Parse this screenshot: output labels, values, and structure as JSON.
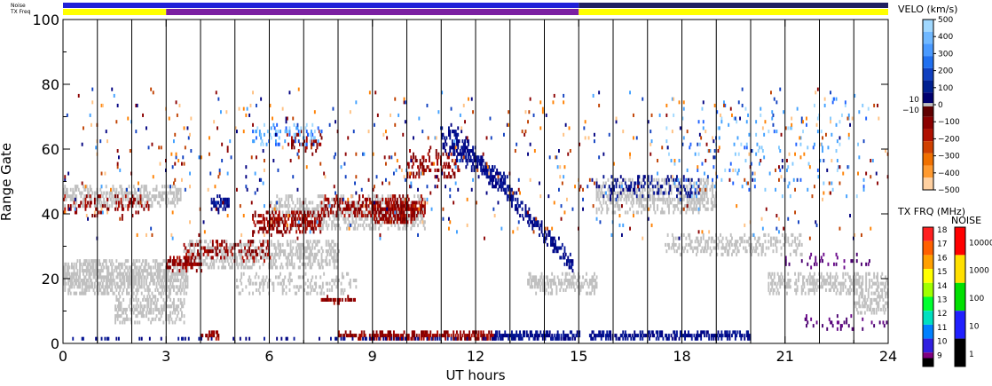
{
  "chart_data": {
    "type": "heatmap",
    "title": "",
    "xlabel": "UT hours",
    "ylabel": "Range Gate",
    "xlim": [
      0,
      24
    ],
    "ylim": [
      0,
      100
    ],
    "x_ticks": [
      0,
      3,
      6,
      9,
      12,
      15,
      18,
      21,
      24
    ],
    "x_tick_labels": [
      "0",
      "3",
      "6",
      "9",
      "12",
      "15",
      "18",
      "21",
      "24"
    ],
    "y_ticks": [
      0,
      20,
      40,
      60,
      80,
      100
    ],
    "y_tick_labels": [
      "0",
      "20",
      "40",
      "60",
      "80",
      "100"
    ],
    "scan_boundaries_ut": [
      1,
      2,
      3,
      4,
      5,
      6,
      7,
      8,
      9,
      10,
      11,
      12,
      13,
      14,
      15,
      16,
      17,
      18,
      19,
      20,
      21,
      22,
      23
    ],
    "top_strips": {
      "noise_label": "Noise",
      "txfreq_label": "TX Freq",
      "txfreq_segments": [
        {
          "start": 0,
          "end": 3,
          "color": "#ffff00"
        },
        {
          "start": 3,
          "end": 15,
          "color": "#7b1fa2"
        },
        {
          "start": 15,
          "end": 24,
          "color": "#ffff00"
        }
      ],
      "noise_segments": [
        {
          "start": 0,
          "end": 15,
          "color": "#2020d8"
        },
        {
          "start": 15,
          "end": 24,
          "color": "#202060"
        }
      ]
    },
    "velocity_colorbar": {
      "title": "VELO (km/s)",
      "range": [
        -500,
        500
      ],
      "tick_values": [
        500,
        400,
        300,
        200,
        100,
        0,
        -100,
        -200,
        -300,
        -400,
        -500
      ],
      "tick_labels": [
        "500",
        "400",
        "300",
        "200",
        "100",
        "0",
        "−100",
        "−200",
        "−300",
        "−400",
        "−500"
      ],
      "ground_scatter_labels": [
        "10",
        "−10"
      ],
      "ground_scatter_color": "#c0c0c0"
    },
    "txfreq_colorbar": {
      "title": "TX FRQ (MHz)",
      "tick_values": [
        18,
        17,
        16,
        15,
        14,
        13,
        12,
        11,
        10,
        9
      ],
      "tick_labels": [
        "18",
        "17",
        "16",
        "15",
        "14",
        "13",
        "12",
        "11",
        "10",
        "9"
      ],
      "colors": [
        "#ff2020",
        "#ff6000",
        "#ffa000",
        "#ffff00",
        "#a0ff00",
        "#00ff30",
        "#00e0c0",
        "#0080ff",
        "#3020e0",
        "#800080"
      ]
    },
    "noise_colorbar": {
      "title": "NOISE",
      "tick_values": [
        10000,
        1000,
        100,
        10,
        1
      ],
      "tick_labels": [
        "10000",
        "1000",
        "100",
        "10",
        "1"
      ],
      "colors": [
        "#ff0000",
        "#ffe000",
        "#00e000",
        "#2020ff",
        "#000000"
      ]
    },
    "scatter_regions": [
      {
        "kind": "ground",
        "t0": 0.0,
        "t1": 3.6,
        "r_center": 20,
        "r_width": 10,
        "density": 0.75
      },
      {
        "kind": "ground",
        "t0": 0.0,
        "t1": 3.4,
        "r_center": 45,
        "r_width": 6,
        "density": 0.55
      },
      {
        "kind": "ground",
        "t0": 1.5,
        "t1": 3.5,
        "r_center": 10,
        "r_width": 7,
        "density": 0.55
      },
      {
        "kind": "ground",
        "t0": 3.5,
        "t1": 8.0,
        "r_center": 27,
        "r_width": 8,
        "density": 0.55
      },
      {
        "kind": "ground",
        "t0": 6.0,
        "t1": 10.5,
        "r_center": 40,
        "r_width": 9,
        "density": 0.5
      },
      {
        "kind": "ground",
        "t0": 5.0,
        "t1": 8.5,
        "r_center": 18,
        "r_width": 5,
        "density": 0.3
      },
      {
        "kind": "ground",
        "t0": 13.5,
        "t1": 15.5,
        "r_center": 18,
        "r_width": 5,
        "density": 0.6
      },
      {
        "kind": "ground",
        "t0": 15.5,
        "t1": 19.0,
        "r_center": 45,
        "r_width": 10,
        "density": 0.5
      },
      {
        "kind": "ground",
        "t0": 17.5,
        "t1": 21.5,
        "r_center": 30,
        "r_width": 6,
        "density": 0.4
      },
      {
        "kind": "ground",
        "t0": 20.5,
        "t1": 24.0,
        "r_center": 18,
        "r_width": 6,
        "density": 0.55
      },
      {
        "kind": "ground",
        "t0": 23.0,
        "t1": 24.0,
        "r_center": 12,
        "r_width": 5,
        "density": 0.55
      },
      {
        "kind": "neg",
        "t0": 0.0,
        "t1": 2.5,
        "r_center": 42,
        "r_width": 6,
        "density": 0.2
      },
      {
        "kind": "neg",
        "t0": 3.0,
        "t1": 4.0,
        "r_center": 24,
        "r_width": 3,
        "density": 0.7
      },
      {
        "kind": "neg",
        "t0": 3.5,
        "t1": 6.0,
        "r_center": 28,
        "r_width": 6,
        "density": 0.3
      },
      {
        "kind": "neg",
        "t0": 5.5,
        "t1": 7.5,
        "r_center": 37,
        "r_width": 6,
        "density": 0.55
      },
      {
        "kind": "neg",
        "t0": 7.5,
        "t1": 10.5,
        "r_center": 42,
        "r_width": 5,
        "density": 0.5
      },
      {
        "kind": "neg",
        "t0": 9.0,
        "t1": 10.2,
        "r_center": 40,
        "r_width": 6,
        "density": 0.75
      },
      {
        "kind": "neg",
        "t0": 10.0,
        "t1": 11.5,
        "r_center": 55,
        "r_width": 8,
        "density": 0.35
      },
      {
        "kind": "neg",
        "t0": 6.5,
        "t1": 7.5,
        "r_center": 62,
        "r_width": 5,
        "density": 0.3
      },
      {
        "kind": "neg",
        "t0": 4.0,
        "t1": 4.5,
        "r_center": 2,
        "r_width": 1.5,
        "density": 0.8
      },
      {
        "kind": "neg",
        "t0": 8.0,
        "t1": 9.0,
        "r_center": 2,
        "r_width": 1.5,
        "density": 0.7
      },
      {
        "kind": "neg",
        "t0": 9.0,
        "t1": 12.5,
        "r_center": 2,
        "r_width": 2,
        "density": 0.8
      },
      {
        "kind": "neg",
        "t0": 7.5,
        "t1": 8.5,
        "r_center": 13,
        "r_width": 1.2,
        "density": 0.8
      },
      {
        "kind": "pos",
        "t0": 11.2,
        "t1": 14.8,
        "r_center": 45,
        "r_width": 4,
        "density": 0.6,
        "slope": -12
      },
      {
        "kind": "pos",
        "t0": 11.0,
        "t1": 13.0,
        "r_center": 55,
        "r_width": 5,
        "density": 0.5,
        "slope": -8
      },
      {
        "kind": "pos",
        "t0": 12.5,
        "t1": 15.0,
        "r_center": 2,
        "r_width": 2,
        "density": 0.8
      },
      {
        "kind": "pos",
        "t0": 15.3,
        "t1": 20.0,
        "r_center": 2,
        "r_width": 2,
        "density": 0.75
      },
      {
        "kind": "pos",
        "t0": 4.3,
        "t1": 4.8,
        "r_center": 43,
        "r_width": 3,
        "density": 0.9
      },
      {
        "kind": "pos",
        "t0": 15.5,
        "t1": 18.5,
        "r_center": 48,
        "r_width": 6,
        "density": 0.25
      },
      {
        "kind": "pos",
        "t0": 0.0,
        "t1": 15.0,
        "r_center": 1,
        "r_width": 1,
        "density": 0.2
      },
      {
        "kind": "light",
        "t0": 5.5,
        "t1": 7.5,
        "r_center": 64,
        "r_width": 5,
        "density": 0.3
      },
      {
        "kind": "light",
        "t0": 17.5,
        "t1": 23.5,
        "r_center": 60,
        "r_width": 30,
        "density": 0.04
      },
      {
        "kind": "mixed",
        "t0": 0.0,
        "t1": 24.0,
        "r_center": 55,
        "r_width": 45,
        "density": 0.025
      },
      {
        "kind": "purple",
        "t0": 21.5,
        "t1": 24.0,
        "r_center": 6,
        "r_width": 4,
        "density": 0.15
      },
      {
        "kind": "purple",
        "t0": 21.0,
        "t1": 23.5,
        "r_center": 25,
        "r_width": 4,
        "density": 0.08
      }
    ]
  }
}
